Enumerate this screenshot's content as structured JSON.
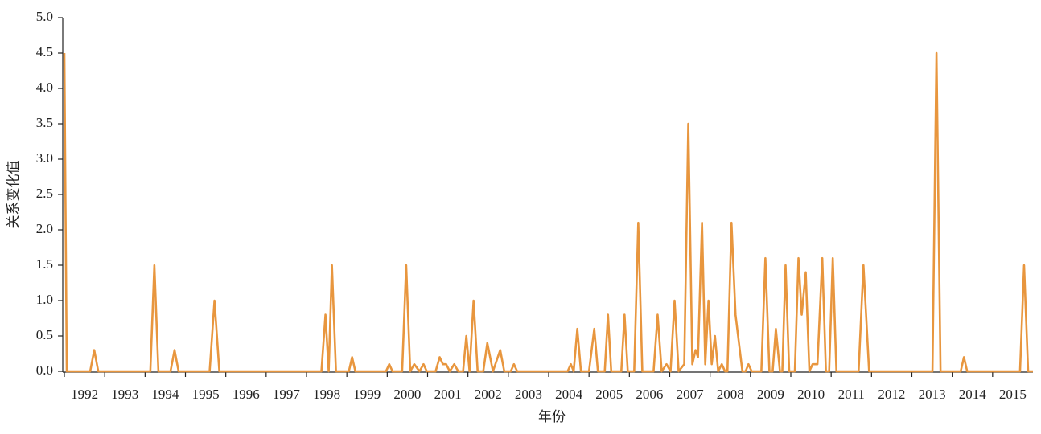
{
  "chart_data": {
    "type": "line",
    "x_label": "年份",
    "y_label": "关系变化值",
    "xlim": [
      1992,
      2016
    ],
    "xticks": [
      1992,
      1993,
      1994,
      1995,
      1996,
      1997,
      1998,
      1999,
      2000,
      2001,
      2002,
      2003,
      2004,
      2005,
      2006,
      2007,
      2008,
      2009,
      2010,
      2011,
      2012,
      2013,
      2014,
      2015
    ],
    "ylim": [
      0,
      5
    ],
    "yticks": [
      {
        "value": 0,
        "label": "0.0"
      },
      {
        "value": 0.5,
        "label": "0.5"
      },
      {
        "value": 1,
        "label": "1.0"
      },
      {
        "value": 1.5,
        "label": "1.5"
      },
      {
        "value": 2,
        "label": "2.0"
      },
      {
        "value": 2.5,
        "label": "2.5"
      },
      {
        "value": 3,
        "label": "3.0"
      },
      {
        "value": 3.5,
        "label": "3.5"
      },
      {
        "value": 4,
        "label": "4.0"
      },
      {
        "value": 4.5,
        "label": "4.5"
      },
      {
        "value": 5,
        "label": "5.0"
      }
    ],
    "color": "#e8963e",
    "x": [
      1992.0,
      1992.06,
      1992.64,
      1992.74,
      1992.84,
      1994.13,
      1994.23,
      1994.33,
      1994.63,
      1994.73,
      1994.83,
      1995.6,
      1995.72,
      1995.84,
      1998.37,
      1998.47,
      1998.55,
      1998.63,
      1998.73,
      1999.05,
      1999.13,
      1999.21,
      1999.97,
      2000.05,
      2000.13,
      2000.37,
      2000.47,
      2000.57,
      2000.67,
      2000.8,
      2000.9,
      2000.98,
      2001.2,
      2001.3,
      2001.38,
      2001.46,
      2001.55,
      2001.66,
      2001.76,
      2001.88,
      2001.96,
      2002.04,
      2002.14,
      2002.24,
      2002.38,
      2002.48,
      2002.62,
      2002.8,
      2002.9,
      2003.06,
      2003.14,
      2003.22,
      2004.47,
      2004.55,
      2004.62,
      2004.71,
      2004.8,
      2005.0,
      2005.13,
      2005.22,
      2005.39,
      2005.47,
      2005.55,
      2005.8,
      2005.88,
      2005.96,
      2006.12,
      2006.22,
      2006.32,
      2006.6,
      2006.7,
      2006.8,
      2006.92,
      2007.02,
      2007.12,
      2007.22,
      2007.36,
      2007.46,
      2007.56,
      2007.64,
      2007.7,
      2007.8,
      2007.88,
      2007.96,
      2008.04,
      2008.12,
      2008.2,
      2008.29,
      2008.37,
      2008.43,
      2008.53,
      2008.63,
      2008.8,
      2008.88,
      2008.95,
      2009.03,
      2009.27,
      2009.37,
      2009.47,
      2009.55,
      2009.63,
      2009.73,
      2009.79,
      2009.87,
      2009.96,
      2010.1,
      2010.19,
      2010.27,
      2010.37,
      2010.46,
      2010.54,
      2010.66,
      2010.78,
      2010.87,
      2010.95,
      2011.04,
      2011.13,
      2011.68,
      2011.8,
      2011.94,
      2013.51,
      2013.61,
      2013.71,
      2014.21,
      2014.29,
      2014.37,
      2015.68,
      2015.78,
      2015.88,
      2016.0
    ],
    "values": [
      4.5,
      0,
      0,
      0.3,
      0,
      0,
      1.5,
      0,
      0,
      0.3,
      0,
      0,
      1.0,
      0,
      0,
      0.8,
      0,
      1.5,
      0,
      0,
      0.2,
      0,
      0,
      0.1,
      0,
      0,
      1.5,
      0,
      0.1,
      0,
      0.1,
      0,
      0,
      0.2,
      0.1,
      0.1,
      0,
      0.1,
      0,
      0,
      0.5,
      0,
      1.0,
      0,
      0,
      0.4,
      0,
      0.3,
      0,
      0,
      0.1,
      0,
      0,
      0.1,
      0,
      0.6,
      0,
      0,
      0.6,
      0,
      0,
      0.8,
      0,
      0,
      0.8,
      0,
      0,
      2.1,
      0,
      0,
      0.8,
      0,
      0.1,
      0,
      1.0,
      0,
      0.1,
      3.5,
      0.1,
      0.3,
      0.2,
      2.1,
      0.1,
      1.0,
      0.1,
      0.5,
      0,
      0.1,
      0,
      0,
      2.1,
      0.8,
      0,
      0,
      0.1,
      0,
      0,
      1.6,
      0,
      0,
      0.6,
      0,
      0,
      1.5,
      0,
      0,
      1.6,
      0.8,
      1.4,
      0,
      0.1,
      0.1,
      1.6,
      0,
      0,
      1.6,
      0,
      0,
      1.5,
      0,
      0,
      4.5,
      0,
      0,
      0.2,
      0,
      0,
      1.5,
      0,
      0
    ]
  }
}
